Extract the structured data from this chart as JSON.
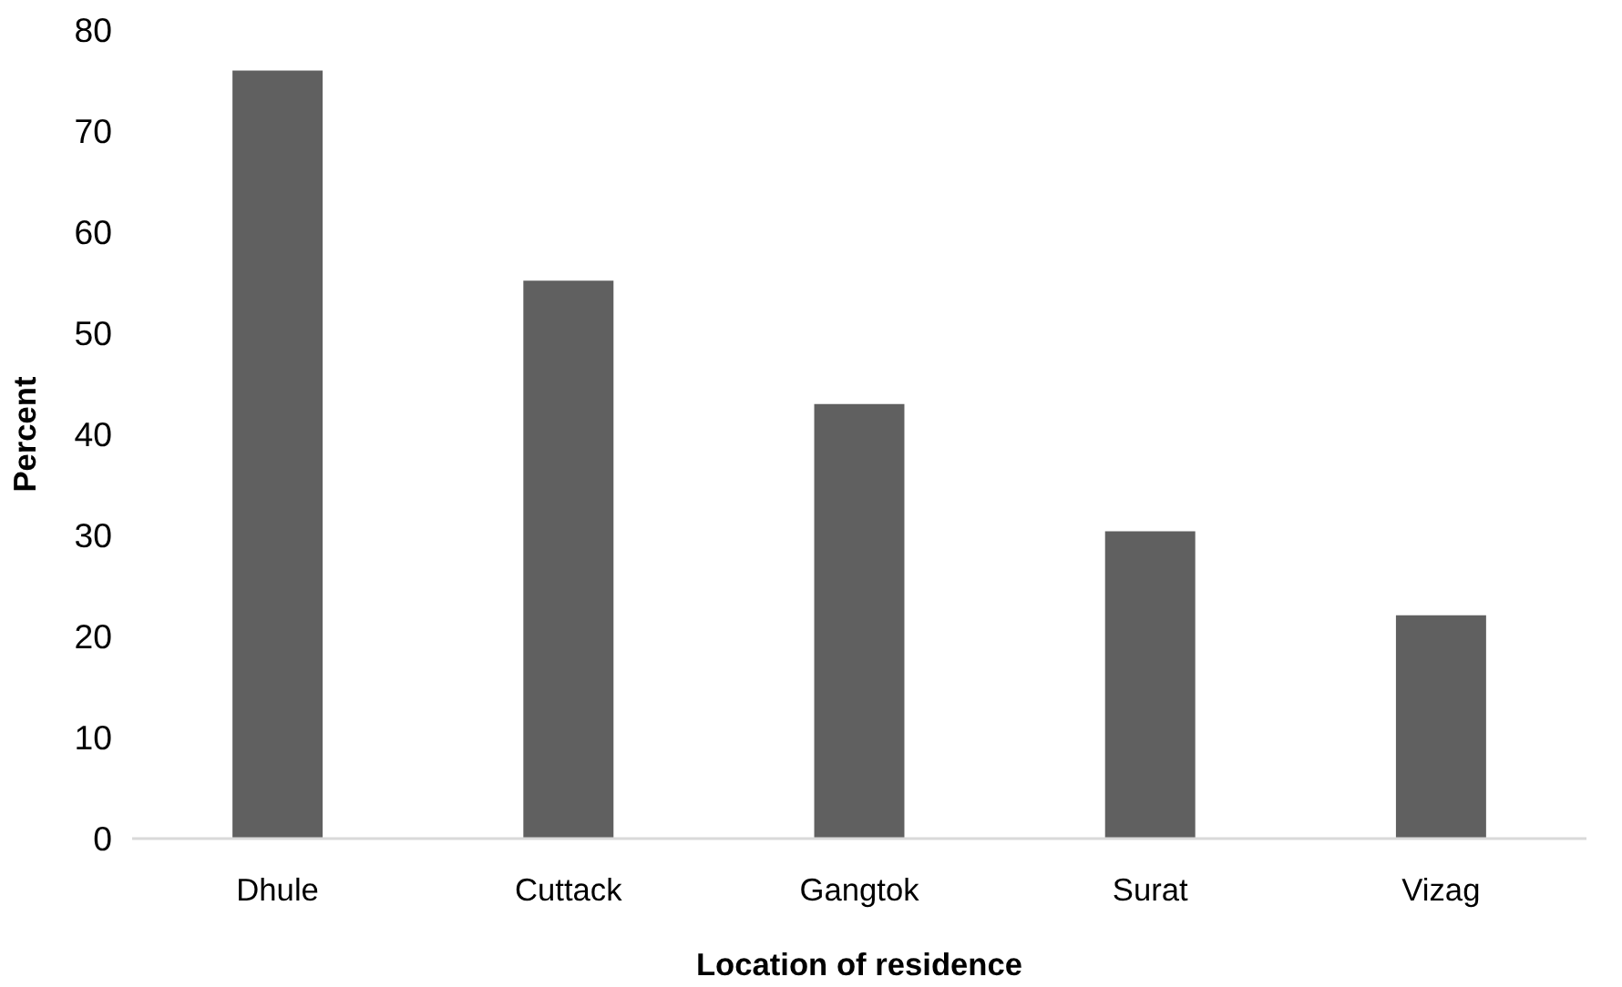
{
  "chart_data": {
    "type": "bar",
    "xlabel": "Location of residence",
    "ylabel": "Percent",
    "categories": [
      "Dhule",
      "Cuttack",
      "Gangtok",
      "Surat",
      "Vizag"
    ],
    "values": [
      76,
      55.2,
      43,
      30.4,
      22.1
    ],
    "color": "#606060",
    "ylim": [
      0,
      80
    ],
    "yticks": [
      0,
      10,
      20,
      30,
      40,
      50,
      60,
      70,
      80
    ],
    "grid": false
  }
}
